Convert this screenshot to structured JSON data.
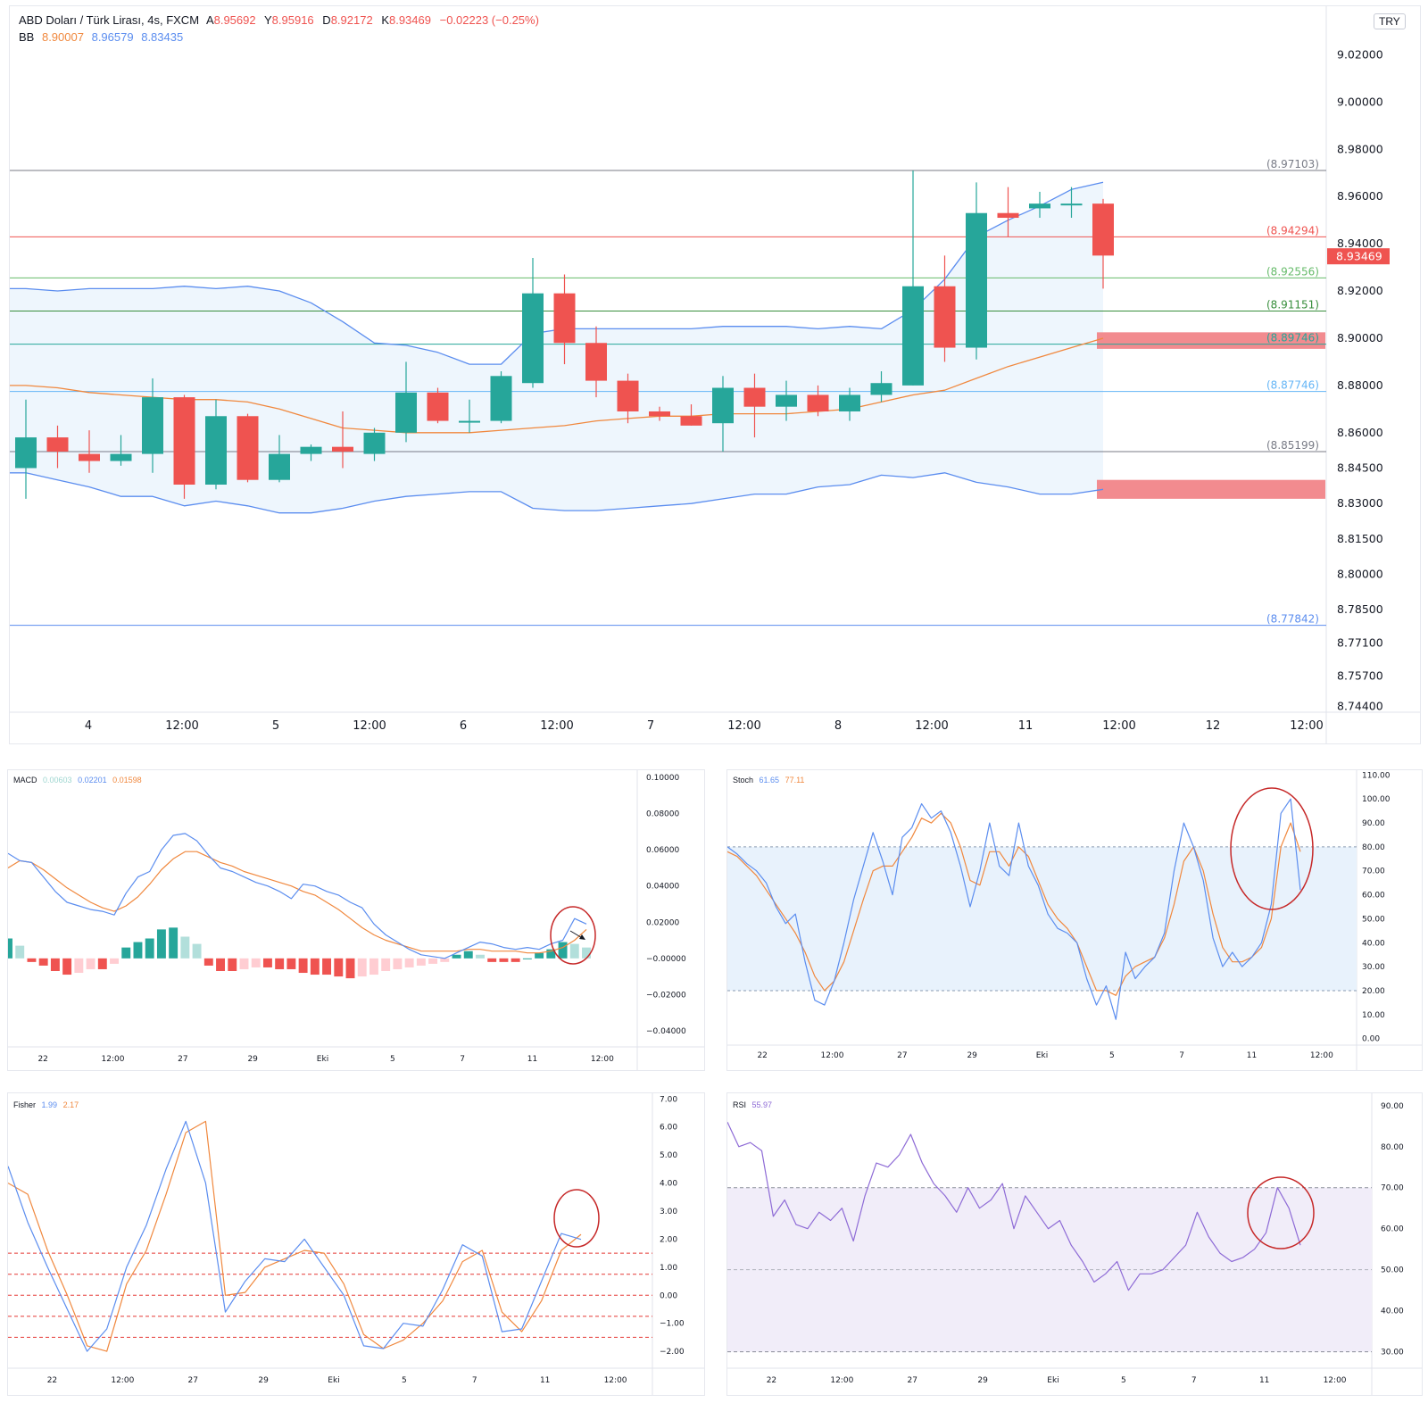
{
  "main": {
    "legend": {
      "symbol": "ABD Doları / Türk Lirası, 4s, FXCM",
      "open_label": "A",
      "open": "8.95692",
      "high_label": "Y",
      "high": "8.95916",
      "low_label": "D",
      "low": "8.92172",
      "close_label": "K",
      "close": "8.93469",
      "change": "−0.02223 (−0.25%)",
      "bb_label": "BB",
      "bb_basis": "8.90007",
      "bb_upper": "8.96579",
      "bb_lower": "8.83435"
    },
    "currency": "TRY",
    "colors": {
      "up": "#26a69a",
      "down": "#ef5350",
      "bb_basis": "#f0883e",
      "bb_band": "#5b8def",
      "bb_fill": "#eef6fd"
    }
  },
  "macd": {
    "title": "MACD",
    "values": [
      "0.00603",
      "0.02201",
      "0.01598"
    ]
  },
  "stoch": {
    "title": "Stoch",
    "values": [
      "61.65",
      "77.11"
    ]
  },
  "fisher": {
    "title": "Fisher",
    "values": [
      "1.99",
      "2.17"
    ]
  },
  "rsi": {
    "title": "RSI",
    "values": [
      "55.97"
    ]
  },
  "chart_data": [
    {
      "type": "candlestick",
      "title": "ABD Doları / Türk Lirası, 4s, FXCM",
      "ylim": [
        8.742,
        9.03
      ],
      "x_ticks": [
        "4",
        "12:00",
        "5",
        "12:00",
        "6",
        "12:00",
        "7",
        "12:00",
        "8",
        "12:00",
        "11",
        "12:00",
        "12",
        "12:00"
      ],
      "y_ticks": [
        "9.02000",
        "9.00000",
        "8.98000",
        "8.96000",
        "8.94000",
        "8.92000",
        "8.90000",
        "8.88000",
        "8.86000",
        "8.84500",
        "8.83000",
        "8.81500",
        "8.80000",
        "8.78500",
        "8.77100",
        "8.75700",
        "8.74400"
      ],
      "candles": [
        {
          "o": 8.845,
          "h": 8.874,
          "l": 8.832,
          "c": 8.858
        },
        {
          "o": 8.858,
          "h": 8.863,
          "l": 8.845,
          "c": 8.852
        },
        {
          "o": 8.851,
          "h": 8.861,
          "l": 8.843,
          "c": 8.848
        },
        {
          "o": 8.848,
          "h": 8.859,
          "l": 8.846,
          "c": 8.851
        },
        {
          "o": 8.851,
          "h": 8.883,
          "l": 8.843,
          "c": 8.875
        },
        {
          "o": 8.875,
          "h": 8.876,
          "l": 8.832,
          "c": 8.838
        },
        {
          "o": 8.838,
          "h": 8.874,
          "l": 8.836,
          "c": 8.867
        },
        {
          "o": 8.867,
          "h": 8.868,
          "l": 8.839,
          "c": 8.84
        },
        {
          "o": 8.84,
          "h": 8.859,
          "l": 8.839,
          "c": 8.851
        },
        {
          "o": 8.851,
          "h": 8.855,
          "l": 8.848,
          "c": 8.854
        },
        {
          "o": 8.854,
          "h": 8.869,
          "l": 8.845,
          "c": 8.852
        },
        {
          "o": 8.851,
          "h": 8.862,
          "l": 8.848,
          "c": 8.86
        },
        {
          "o": 8.86,
          "h": 8.89,
          "l": 8.856,
          "c": 8.877
        },
        {
          "o": 8.877,
          "h": 8.879,
          "l": 8.864,
          "c": 8.865
        },
        {
          "o": 8.865,
          "h": 8.874,
          "l": 8.86,
          "c": 8.865
        },
        {
          "o": 8.865,
          "h": 8.886,
          "l": 8.864,
          "c": 8.884
        },
        {
          "o": 8.881,
          "h": 8.934,
          "l": 8.879,
          "c": 8.919
        },
        {
          "o": 8.919,
          "h": 8.927,
          "l": 8.889,
          "c": 8.898
        },
        {
          "o": 8.898,
          "h": 8.905,
          "l": 8.875,
          "c": 8.882
        },
        {
          "o": 8.882,
          "h": 8.885,
          "l": 8.864,
          "c": 8.869
        },
        {
          "o": 8.869,
          "h": 8.871,
          "l": 8.865,
          "c": 8.867
        },
        {
          "o": 8.867,
          "h": 8.872,
          "l": 8.863,
          "c": 8.863
        },
        {
          "o": 8.864,
          "h": 8.884,
          "l": 8.852,
          "c": 8.879
        },
        {
          "o": 8.879,
          "h": 8.885,
          "l": 8.858,
          "c": 8.871
        },
        {
          "o": 8.871,
          "h": 8.882,
          "l": 8.865,
          "c": 8.876
        },
        {
          "o": 8.876,
          "h": 8.88,
          "l": 8.867,
          "c": 8.869
        },
        {
          "o": 8.869,
          "h": 8.879,
          "l": 8.865,
          "c": 8.876
        },
        {
          "o": 8.876,
          "h": 8.886,
          "l": 8.873,
          "c": 8.881
        },
        {
          "o": 8.88,
          "h": 8.971,
          "l": 8.88,
          "c": 8.922
        },
        {
          "o": 8.922,
          "h": 8.935,
          "l": 8.89,
          "c": 8.896
        },
        {
          "o": 8.896,
          "h": 8.966,
          "l": 8.891,
          "c": 8.953
        },
        {
          "o": 8.953,
          "h": 8.964,
          "l": 8.943,
          "c": 8.951
        },
        {
          "o": 8.955,
          "h": 8.962,
          "l": 8.951,
          "c": 8.957
        },
        {
          "o": 8.957,
          "h": 8.964,
          "l": 8.951,
          "c": 8.957
        },
        {
          "o": 8.957,
          "h": 8.959,
          "l": 8.921,
          "c": 8.935
        }
      ],
      "bb_upper": [
        8.921,
        8.92,
        8.921,
        8.921,
        8.921,
        8.922,
        8.921,
        8.922,
        8.92,
        8.915,
        8.907,
        8.898,
        8.897,
        8.894,
        8.889,
        8.889,
        8.902,
        8.904,
        8.904,
        8.904,
        8.904,
        8.904,
        8.905,
        8.905,
        8.905,
        8.904,
        8.905,
        8.904,
        8.912,
        8.925,
        8.943,
        8.95,
        8.956,
        8.963,
        8.966
      ],
      "bb_basis": [
        8.88,
        8.879,
        8.877,
        8.876,
        8.875,
        8.874,
        8.874,
        8.873,
        8.87,
        8.866,
        8.862,
        8.861,
        8.86,
        8.86,
        8.86,
        8.861,
        8.862,
        8.863,
        8.865,
        8.866,
        8.867,
        8.867,
        8.868,
        8.868,
        8.868,
        8.869,
        8.87,
        8.873,
        8.876,
        8.878,
        8.883,
        8.888,
        8.892,
        8.896,
        8.9
      ],
      "bb_lower": [
        8.843,
        8.84,
        8.837,
        8.833,
        8.833,
        8.829,
        8.831,
        8.829,
        8.826,
        8.826,
        8.828,
        8.831,
        8.833,
        8.834,
        8.835,
        8.835,
        8.828,
        8.827,
        8.827,
        8.828,
        8.829,
        8.83,
        8.832,
        8.834,
        8.834,
        8.837,
        8.838,
        8.842,
        8.841,
        8.843,
        8.839,
        8.837,
        8.834,
        8.834,
        8.836
      ],
      "levels": [
        {
          "value": 8.97103,
          "label": "(8.97103)",
          "color": "#787b86"
        },
        {
          "value": 8.94294,
          "label": "(8.94294)",
          "color": "#ef5350"
        },
        {
          "value": 8.92556,
          "label": "(8.92556)",
          "color": "#66bb6a"
        },
        {
          "value": 8.91151,
          "label": "(8.91151)",
          "color": "#388e3c"
        },
        {
          "value": 8.89746,
          "label": "(8.89746)",
          "color": "#26a69a"
        },
        {
          "value": 8.87746,
          "label": "(8.87746)",
          "color": "#64b5f6"
        },
        {
          "value": 8.85199,
          "label": "(8.85199)",
          "color": "#787b86"
        },
        {
          "value": 8.77842,
          "label": "(8.77842)",
          "color": "#5b8def"
        }
      ],
      "zones": [
        {
          "from": 8.8955,
          "to": 8.9025
        },
        {
          "from": 8.832,
          "to": 8.84
        }
      ],
      "last_price": "8.93469"
    },
    {
      "type": "line",
      "title": "MACD",
      "ylim": [
        -0.044,
        0.104
      ],
      "y_ticks": [
        "0.10000",
        "0.08000",
        "0.06000",
        "0.04000",
        "0.02000",
        "−0.00000",
        "−0.02000",
        "−0.04000"
      ],
      "x_ticks": [
        "22",
        "12:00",
        "27",
        "29",
        "Eki",
        "5",
        "7",
        "11",
        "12:00"
      ],
      "macd": [
        0.058,
        0.054,
        0.053,
        0.045,
        0.037,
        0.031,
        0.029,
        0.027,
        0.026,
        0.024,
        0.036,
        0.045,
        0.048,
        0.06,
        0.068,
        0.069,
        0.065,
        0.057,
        0.05,
        0.048,
        0.045,
        0.042,
        0.04,
        0.037,
        0.033,
        0.041,
        0.04,
        0.037,
        0.035,
        0.031,
        0.028,
        0.019,
        0.013,
        0.009,
        0.005,
        0.002,
        0.001,
        0.0,
        0.003,
        0.006,
        0.009,
        0.008,
        0.006,
        0.005,
        0.006,
        0.005,
        0.008,
        0.01,
        0.022,
        0.019
      ],
      "signal": [
        0.05,
        0.054,
        0.053,
        0.049,
        0.044,
        0.039,
        0.035,
        0.031,
        0.028,
        0.026,
        0.029,
        0.034,
        0.041,
        0.049,
        0.055,
        0.059,
        0.059,
        0.056,
        0.053,
        0.051,
        0.048,
        0.046,
        0.044,
        0.042,
        0.04,
        0.037,
        0.035,
        0.031,
        0.027,
        0.022,
        0.017,
        0.013,
        0.01,
        0.008,
        0.006,
        0.004,
        0.004,
        0.004,
        0.004,
        0.005,
        0.005,
        0.004,
        0.004,
        0.004,
        0.003,
        0.003,
        0.004,
        0.006,
        0.01,
        0.016
      ],
      "histogram": [
        0.011,
        0.007,
        -0.002,
        -0.004,
        -0.007,
        -0.009,
        -0.008,
        -0.006,
        -0.006,
        -0.003,
        0.006,
        0.009,
        0.011,
        0.016,
        0.017,
        0.012,
        0.008,
        -0.004,
        -0.007,
        -0.007,
        -0.006,
        -0.005,
        -0.005,
        -0.006,
        -0.006,
        -0.008,
        -0.009,
        -0.009,
        -0.01,
        -0.011,
        -0.01,
        -0.009,
        -0.007,
        -0.006,
        -0.005,
        -0.004,
        -0.003,
        -0.002,
        0.002,
        0.004,
        0.002,
        -0.002,
        -0.002,
        -0.002,
        0.0,
        0.003,
        0.005,
        0.009,
        0.008,
        0.006
      ]
    },
    {
      "type": "line",
      "title": "Stoch",
      "ylim": [
        -2,
        112
      ],
      "y_ticks": [
        "110.00",
        "100.00",
        "90.00",
        "80.00",
        "70.00",
        "60.00",
        "50.00",
        "40.00",
        "30.00",
        "20.00",
        "10.00",
        "0.00"
      ],
      "x_ticks": [
        "22",
        "12:00",
        "27",
        "29",
        "Eki",
        "5",
        "7",
        "11",
        "12:00"
      ],
      "band": [
        20,
        80
      ],
      "k": [
        80,
        77,
        73,
        70,
        65,
        55,
        48,
        52,
        32,
        16,
        14,
        24,
        40,
        58,
        72,
        86,
        74,
        60,
        84,
        88,
        98,
        92,
        95,
        86,
        72,
        55,
        70,
        90,
        72,
        68,
        90,
        72,
        64,
        52,
        46,
        44,
        40,
        25,
        14,
        22,
        8,
        36,
        25,
        30,
        34,
        44,
        70,
        90,
        80,
        66,
        42,
        30,
        36,
        30,
        34,
        40,
        56,
        94,
        100,
        62
      ],
      "d": [
        78,
        76,
        72,
        68,
        62,
        56,
        50,
        44,
        36,
        26,
        20,
        24,
        32,
        45,
        58,
        70,
        72,
        72,
        78,
        84,
        92,
        90,
        94,
        90,
        80,
        66,
        64,
        78,
        78,
        72,
        80,
        76,
        66,
        56,
        50,
        46,
        40,
        30,
        20,
        20,
        18,
        26,
        30,
        32,
        34,
        42,
        56,
        74,
        80,
        70,
        52,
        38,
        32,
        32,
        34,
        38,
        50,
        80,
        90,
        78
      ]
    },
    {
      "type": "line",
      "title": "Fisher",
      "ylim": [
        -2.6,
        7.2
      ],
      "y_ticks": [
        "7.00",
        "6.00",
        "5.00",
        "4.00",
        "3.00",
        "2.00",
        "1.00",
        "0.00",
        "−1.00",
        "−2.00"
      ],
      "x_ticks": [
        "22",
        "12:00",
        "27",
        "29",
        "Eki",
        "5",
        "7",
        "11",
        "12:00"
      ],
      "levels": [
        1.5,
        0.75,
        0.0,
        -0.75,
        -1.5
      ],
      "fisher": [
        4.6,
        2.6,
        1.0,
        -0.5,
        -2.0,
        -1.2,
        1.0,
        2.5,
        4.5,
        6.2,
        4.0,
        -0.6,
        0.5,
        1.3,
        1.2,
        2.0,
        1.0,
        0.0,
        -1.8,
        -1.9,
        -1.0,
        -1.1,
        0.2,
        1.8,
        1.4,
        -1.3,
        -1.2,
        0.5,
        2.2,
        1.99
      ],
      "trigger": [
        4.0,
        3.6,
        1.6,
        0.0,
        -1.8,
        -2.0,
        0.4,
        1.6,
        3.6,
        5.8,
        6.2,
        0.0,
        0.1,
        1.0,
        1.3,
        1.6,
        1.5,
        0.4,
        -1.4,
        -1.9,
        -1.6,
        -1.0,
        -0.2,
        1.2,
        1.6,
        -0.6,
        -1.3,
        -0.2,
        1.6,
        2.17
      ]
    },
    {
      "type": "line",
      "title": "RSI",
      "ylim": [
        26,
        93
      ],
      "y_ticks": [
        "90.00",
        "80.00",
        "70.00",
        "60.00",
        "50.00",
        "40.00",
        "30.00"
      ],
      "x_ticks": [
        "22",
        "12:00",
        "27",
        "29",
        "Eki",
        "5",
        "7",
        "11",
        "12:00"
      ],
      "band": [
        30,
        70
      ],
      "rsi": [
        86,
        80,
        81,
        79,
        63,
        67,
        61,
        60,
        64,
        62,
        65,
        57,
        68,
        76,
        75,
        78,
        83,
        76,
        71,
        68,
        64,
        70,
        65,
        67,
        71,
        60,
        68,
        64,
        60,
        62,
        56,
        52,
        47,
        49,
        52,
        45,
        49,
        49,
        50,
        53,
        56,
        64,
        58,
        54,
        52,
        53,
        55,
        59,
        70,
        65,
        55.97
      ]
    }
  ]
}
